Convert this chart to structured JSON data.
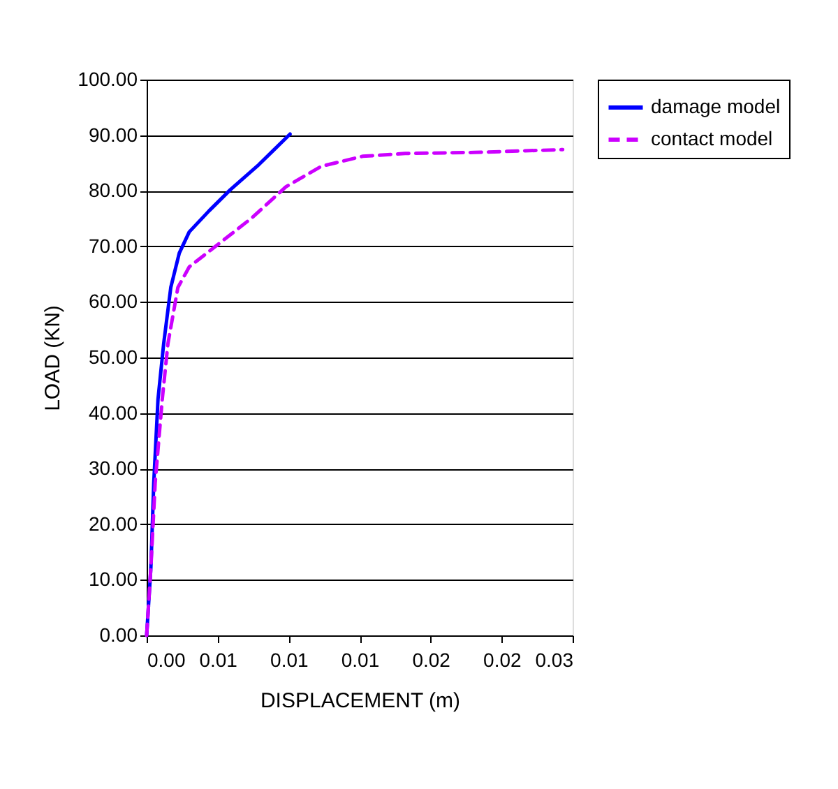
{
  "chart_data": {
    "type": "line",
    "xlabel": "DISPLACEMENT (m)",
    "ylabel": "LOAD (KN)",
    "xlim": [
      0,
      0.03
    ],
    "ylim": [
      0,
      100
    ],
    "xticks": [
      {
        "value": 0,
        "label": "0.00"
      },
      {
        "value": 0.005,
        "label": "0.01"
      },
      {
        "value": 0.01,
        "label": "0.01"
      },
      {
        "value": 0.015,
        "label": "0.01"
      },
      {
        "value": 0.02,
        "label": "0.02"
      },
      {
        "value": 0.025,
        "label": "0.02"
      },
      {
        "value": 0.03,
        "label": "0.03"
      }
    ],
    "yticks": [
      {
        "value": 0,
        "label": "0.00"
      },
      {
        "value": 10,
        "label": "10.00"
      },
      {
        "value": 20,
        "label": "20.00"
      },
      {
        "value": 30,
        "label": "30.00"
      },
      {
        "value": 40,
        "label": "40.00"
      },
      {
        "value": 50,
        "label": "50.00"
      },
      {
        "value": 60,
        "label": "60.00"
      },
      {
        "value": 70,
        "label": "70.00"
      },
      {
        "value": 80,
        "label": "80.00"
      },
      {
        "value": 90,
        "label": "90.00"
      },
      {
        "value": 100,
        "label": "100.00"
      }
    ],
    "grid": "y",
    "legend": "right",
    "series": [
      {
        "name": "damage model",
        "color": "#0000ff",
        "line_style": "solid",
        "x": [
          0,
          0.0003,
          0.0005,
          0.0008,
          0.0012,
          0.0017,
          0.0023,
          0.003,
          0.0044,
          0.0059,
          0.0079,
          0.0089,
          0.0101
        ],
        "values": [
          0,
          12.3,
          27.4,
          42.5,
          52.5,
          62.6,
          68.8,
          72.6,
          76.4,
          80.2,
          84.7,
          87.2,
          90.2
        ]
      },
      {
        "name": "contact model",
        "color": "#cc00ff",
        "line_style": "dashed",
        "x": [
          0,
          0.0003,
          0.0006,
          0.0011,
          0.0015,
          0.0022,
          0.003,
          0.0049,
          0.0074,
          0.0098,
          0.0123,
          0.0152,
          0.0182,
          0.0231,
          0.0293
        ],
        "values": [
          0,
          12.3,
          27.4,
          42.5,
          52.5,
          62.6,
          66.3,
          70.1,
          75.1,
          80.7,
          84.4,
          86.2,
          86.7,
          86.9,
          87.4
        ]
      }
    ]
  }
}
